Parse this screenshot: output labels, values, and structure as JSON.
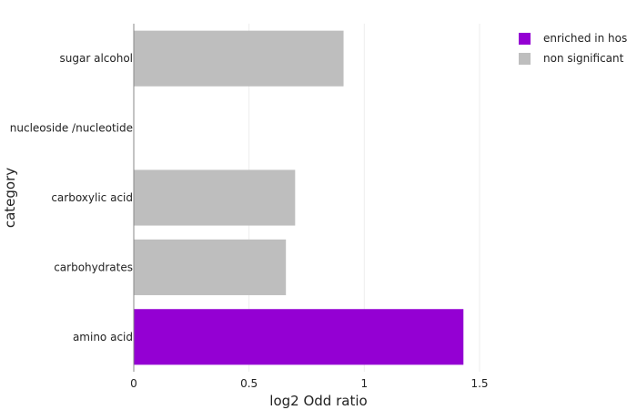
{
  "chart_data": {
    "type": "bar",
    "orientation": "horizontal",
    "categories": [
      "sugar alcohol",
      "nucleoside /nucleotide",
      "carboxylic acid",
      "carbohydrates",
      "amino acid"
    ],
    "values": [
      0.91,
      0.0,
      0.7,
      0.66,
      1.43
    ],
    "bar_groups": [
      "non significant",
      "non significant",
      "non significant",
      "non significant",
      "enriched in hos"
    ],
    "xlabel": "log2 Odd ratio",
    "ylabel": "category",
    "xlim": [
      0,
      1.65
    ],
    "xticks": [
      0,
      0.5,
      1,
      1.5
    ],
    "xtick_labels": [
      "0",
      "0.5",
      "1",
      "1.5"
    ],
    "grid": "vertical",
    "legend_position": "top-right",
    "legend": [
      {
        "label": "enriched in hos",
        "color": "#9400d3"
      },
      {
        "label": "non significant",
        "color": "#bebebe"
      }
    ]
  }
}
